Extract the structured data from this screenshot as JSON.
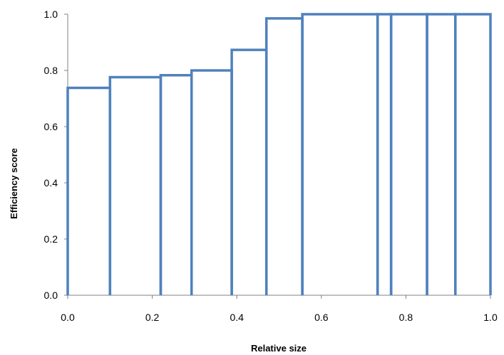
{
  "chart_data": {
    "type": "bar",
    "subtype": "variable-width step bars",
    "xlabel": "Relative size",
    "ylabel": "Efficiency score",
    "xlim": [
      0,
      1
    ],
    "ylim": [
      0,
      1
    ],
    "x_ticks": [
      "0.0",
      "0.2",
      "0.4",
      "0.6",
      "0.8",
      "1.0"
    ],
    "y_ticks": [
      "0.0",
      "0.2",
      "0.4",
      "0.6",
      "0.8",
      "1.0"
    ],
    "grid": false,
    "legend": "none",
    "color": "#4f81bd",
    "bars": [
      {
        "x_start": 0.0,
        "x_end": 0.1,
        "value": 0.738
      },
      {
        "x_start": 0.1,
        "x_end": 0.22,
        "value": 0.776
      },
      {
        "x_start": 0.22,
        "x_end": 0.293,
        "value": 0.783
      },
      {
        "x_start": 0.293,
        "x_end": 0.388,
        "value": 0.8
      },
      {
        "x_start": 0.388,
        "x_end": 0.47,
        "value": 0.873
      },
      {
        "x_start": 0.47,
        "x_end": 0.555,
        "value": 0.985
      },
      {
        "x_start": 0.555,
        "x_end": 0.733,
        "value": 1.0
      },
      {
        "x_start": 0.733,
        "x_end": 0.765,
        "value": 1.0
      },
      {
        "x_start": 0.765,
        "x_end": 0.85,
        "value": 1.0
      },
      {
        "x_start": 0.85,
        "x_end": 0.917,
        "value": 1.0
      },
      {
        "x_start": 0.917,
        "x_end": 1.0,
        "value": 1.0
      }
    ]
  }
}
